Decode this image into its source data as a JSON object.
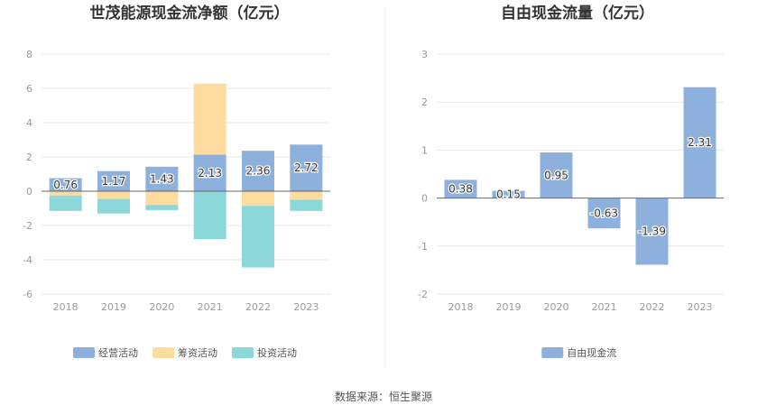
{
  "source_text": "数据来源：恒生聚源",
  "chart_data": [
    {
      "type": "bar",
      "stacked": true,
      "title": "世茂能源现金流净额（亿元）",
      "categories": [
        "2018",
        "2019",
        "2020",
        "2021",
        "2022",
        "2023"
      ],
      "ylim": [
        -6,
        8
      ],
      "yticks": [
        -6,
        -4,
        -2,
        0,
        2,
        4,
        6,
        8
      ],
      "grid": true,
      "legend_position": "bottom",
      "series": [
        {
          "name": "经营活动",
          "color": "#8eb0dc",
          "values": [
            0.76,
            1.17,
            1.43,
            2.13,
            2.36,
            2.72
          ],
          "labels": [
            "0.76",
            "1.17",
            "1.43",
            "2.13",
            "2.36",
            "2.72"
          ]
        },
        {
          "name": "筹资活动",
          "color": "#fedb9f",
          "values": [
            -0.25,
            -0.45,
            -0.8,
            4.15,
            -0.85,
            -0.5
          ]
        },
        {
          "name": "投资活动",
          "color": "#8cd7da",
          "values": [
            -0.9,
            -0.85,
            -0.3,
            -2.8,
            -3.6,
            -0.65
          ]
        }
      ]
    },
    {
      "type": "bar",
      "title": "自由现金流量（亿元）",
      "categories": [
        "2018",
        "2019",
        "2020",
        "2021",
        "2022",
        "2023"
      ],
      "ylim": [
        -2,
        3
      ],
      "yticks": [
        -2,
        -1,
        0,
        1,
        2,
        3
      ],
      "grid": true,
      "legend_position": "bottom",
      "series": [
        {
          "name": "自由现金流",
          "color": "#8eb0dc",
          "values": [
            0.38,
            0.15,
            0.95,
            -0.63,
            -1.39,
            2.31
          ],
          "labels": [
            "0.38",
            "0.15",
            "0.95",
            "-0.63",
            "-1.39",
            "2.31"
          ]
        }
      ]
    }
  ]
}
